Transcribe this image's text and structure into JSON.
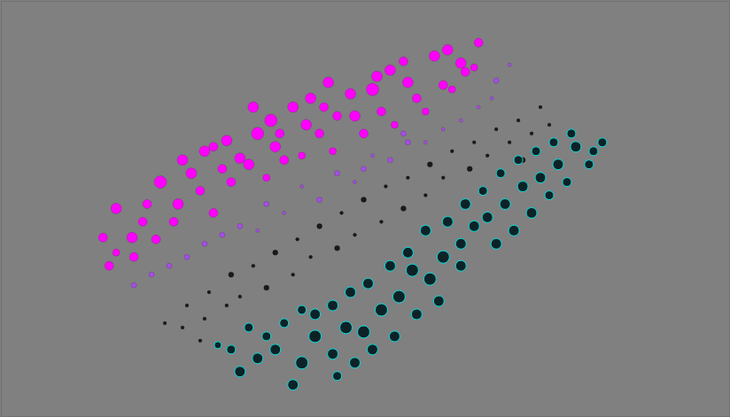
{
  "chart_data": {
    "type": "scatter",
    "tick_labels": false,
    "grid": false,
    "xlim": [
      0,
      824
    ],
    "ylim": [
      0,
      471
    ],
    "series": [
      {
        "color": "#1a1a1a",
        "marker": "filled",
        "x": [
          185,
          210,
          235,
          260,
          285,
          310,
          335,
          360,
          385,
          410,
          435,
          460,
          485,
          510,
          535,
          560,
          585,
          610,
          230,
          255,
          300,
          330,
          350,
          380,
          400,
          430,
          455,
          480,
          500,
          530,
          550,
          575,
          600,
          270,
          225,
          205,
          590,
          620
        ],
        "values": [
          365,
          345,
          330,
          310,
          300,
          285,
          270,
          255,
          240,
          225,
          210,
          200,
          185,
          170,
          160,
          145,
          135,
          120,
          360,
          345,
          325,
          310,
          290,
          280,
          265,
          250,
          235,
          220,
          200,
          190,
          175,
          160,
          150,
          335,
          385,
          370,
          180,
          140
        ],
        "sizes": [
          2,
          2,
          2,
          3,
          2,
          3,
          2,
          3,
          2,
          3,
          2,
          2,
          3,
          2,
          2,
          2,
          2,
          2,
          2,
          2,
          3,
          2,
          2,
          3,
          2,
          2,
          3,
          2,
          2,
          3,
          2,
          2,
          2,
          2,
          2,
          2,
          3,
          2
        ]
      },
      {
        "color": "#a64ee6",
        "marker": "filled",
        "x": [
          150,
          190,
          230,
          270,
          320,
          360,
          400,
          440,
          480,
          520,
          555,
          560,
          575,
          210,
          250,
          300,
          340,
          380,
          420,
          460,
          500,
          540,
          455,
          410,
          290,
          170
        ],
        "values": [
          322,
          300,
          275,
          255,
          240,
          225,
          205,
          180,
          160,
          135,
          110,
          90,
          72,
          290,
          265,
          230,
          210,
          195,
          175,
          160,
          145,
          120,
          150,
          190,
          260,
          310
        ],
        "sizes": [
          3,
          3,
          3,
          3,
          2,
          3,
          2,
          3,
          2,
          2,
          2,
          3,
          2,
          3,
          3,
          3,
          2,
          3,
          2,
          3,
          2,
          2,
          3,
          3,
          2,
          3
        ]
      },
      {
        "color": "#00e0e0",
        "marker": "outlined",
        "x": [
          270,
          290,
          310,
          330,
          340,
          355,
          375,
          390,
          410,
          430,
          450,
          465,
          485,
          500,
          520,
          535,
          550,
          570,
          590,
          610,
          630,
          650,
          670,
          680,
          600,
          580,
          560,
          520,
          495,
          470,
          445,
          420,
          400,
          380,
          355,
          375,
          395,
          415,
          440,
          460,
          480,
          505,
          525,
          545,
          565,
          585,
          605,
          625,
          645,
          665,
          620,
          640,
          300,
          320,
          340,
          280,
          260,
          245
        ],
        "values": [
          420,
          405,
          395,
          435,
          410,
          380,
          400,
          370,
          375,
          350,
          335,
          305,
          315,
          290,
          275,
          255,
          245,
          230,
          210,
          200,
          185,
          165,
          170,
          160,
          240,
          260,
          275,
          300,
          340,
          355,
          380,
          395,
          410,
          425,
          355,
          345,
          330,
          320,
          300,
          285,
          260,
          250,
          230,
          215,
          195,
          180,
          170,
          160,
          150,
          185,
          220,
          205,
          380,
          365,
          350,
          370,
          395,
          390
        ],
        "sizes": [
          6,
          6,
          6,
          6,
          7,
          7,
          6,
          7,
          7,
          7,
          7,
          7,
          7,
          7,
          6,
          6,
          6,
          6,
          6,
          6,
          6,
          6,
          5,
          5,
          6,
          6,
          6,
          6,
          6,
          6,
          6,
          6,
          6,
          5,
          6,
          6,
          6,
          6,
          6,
          6,
          6,
          6,
          6,
          5,
          5,
          5,
          5,
          5,
          5,
          5,
          5,
          5,
          5,
          5,
          5,
          5,
          5,
          4
        ]
      },
      {
        "color": "#ff00ff",
        "marker": "filled",
        "x": [
          130,
          148,
          115,
          122,
          160,
          180,
          205,
          215,
          230,
          255,
          270,
          290,
          305,
          330,
          350,
          370,
          395,
          400,
          420,
          440,
          460,
          490,
          505,
          520,
          540,
          345,
          310,
          280,
          250,
          200,
          175,
          150,
          225,
          260,
          320,
          360,
          380,
          410,
          430,
          470,
          500,
          525,
          195,
          240,
          300,
          340,
          375,
          445,
          480,
          510,
          535,
          130,
          165,
          285,
          425,
          455,
          365,
          315,
          240
        ],
        "values": [
          235,
          268,
          268,
          300,
          250,
          205,
          180,
          195,
          170,
          158,
          178,
          150,
          135,
          120,
          110,
          92,
          105,
          130,
          100,
          78,
          92,
          62,
          55,
          70,
          47,
          140,
          165,
          185,
          190,
          230,
          270,
          290,
          215,
          205,
          180,
          150,
          130,
          150,
          125,
          110,
          95,
          80,
          250,
          240,
          200,
          175,
          170,
          140,
          125,
          100,
          75,
          285,
          230,
          120,
          85,
          68,
          120,
          150,
          165
        ],
        "sizes": [
          6,
          6,
          5,
          5,
          5,
          7,
          6,
          6,
          6,
          6,
          6,
          7,
          7,
          6,
          6,
          6,
          6,
          6,
          7,
          6,
          6,
          6,
          6,
          6,
          5,
          6,
          6,
          6,
          5,
          6,
          5,
          5,
          5,
          5,
          5,
          5,
          5,
          5,
          5,
          5,
          5,
          5,
          5,
          5,
          4,
          4,
          4,
          4,
          4,
          4,
          4,
          4,
          5,
          6,
          6,
          5,
          5,
          5,
          5
        ]
      }
    ]
  }
}
